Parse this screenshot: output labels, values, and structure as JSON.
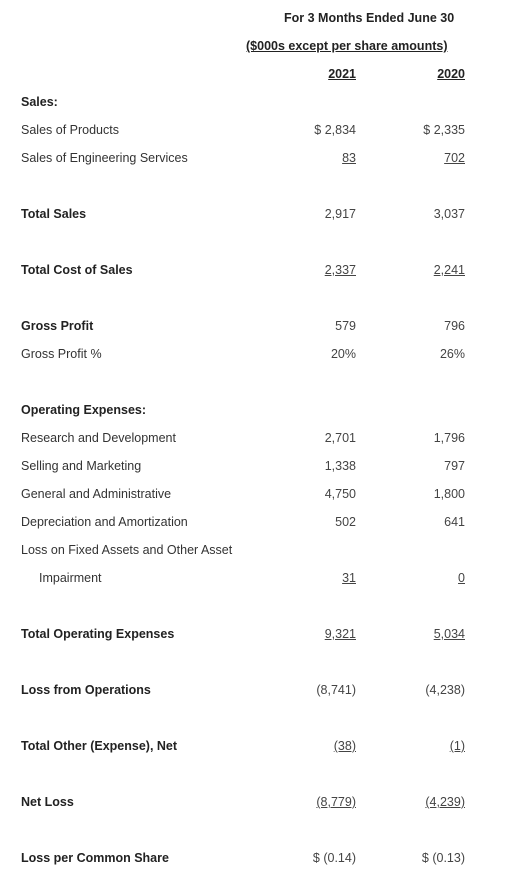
{
  "header": {
    "title": "For 3 Months Ended June 30",
    "units": "($000s except per share amounts)",
    "year_2021": "2021",
    "year_2020": "2020"
  },
  "rows": [
    {
      "label": "Sales:",
      "v2021": "",
      "v2020": ""
    },
    {
      "label": "Sales of Products",
      "v2021": "$ 2,834",
      "v2020": "$ 2,335"
    },
    {
      "label": "Sales of Engineering Services",
      "v2021": "83",
      "v2020": "702"
    },
    {
      "label": "Total Sales",
      "v2021": "2,917",
      "v2020": "3,037"
    },
    {
      "label": "Total Cost of Sales",
      "v2021": "2,337",
      "v2020": "2,241"
    },
    {
      "label": "Gross Profit",
      "v2021": "579",
      "v2020": "796"
    },
    {
      "label": "Gross Profit %",
      "v2021": "20%",
      "v2020": "26%"
    },
    {
      "label": "Operating Expenses:",
      "v2021": "",
      "v2020": ""
    },
    {
      "label": "Research and Development",
      "v2021": "2,701",
      "v2020": "1,796"
    },
    {
      "label": "Selling and Marketing",
      "v2021": "1,338",
      "v2020": "797"
    },
    {
      "label": "General and Administrative",
      "v2021": "4,750",
      "v2020": "1,800"
    },
    {
      "label": "Depreciation and Amortization",
      "v2021": "502",
      "v2020": "641"
    },
    {
      "label": "Loss on Fixed Assets and Other Asset",
      "v2021": "",
      "v2020": ""
    },
    {
      "label": "Impairment",
      "v2021": "31",
      "v2020": "0"
    },
    {
      "label": "Total Operating Expenses",
      "v2021": "9,321",
      "v2020": "5,034"
    },
    {
      "label": "Loss from Operations",
      "v2021": "(8,741)",
      "v2020": "(4,238)"
    },
    {
      "label": "Total Other (Expense), Net",
      "v2021": "(38)",
      "v2020": "(1)"
    },
    {
      "label": "Net Loss",
      "v2021": "(8,779)",
      "v2020": "(4,239)"
    },
    {
      "label": "Loss per Common Share",
      "v2021": "$ (0.14)",
      "v2020": "$ (0.13)"
    }
  ]
}
